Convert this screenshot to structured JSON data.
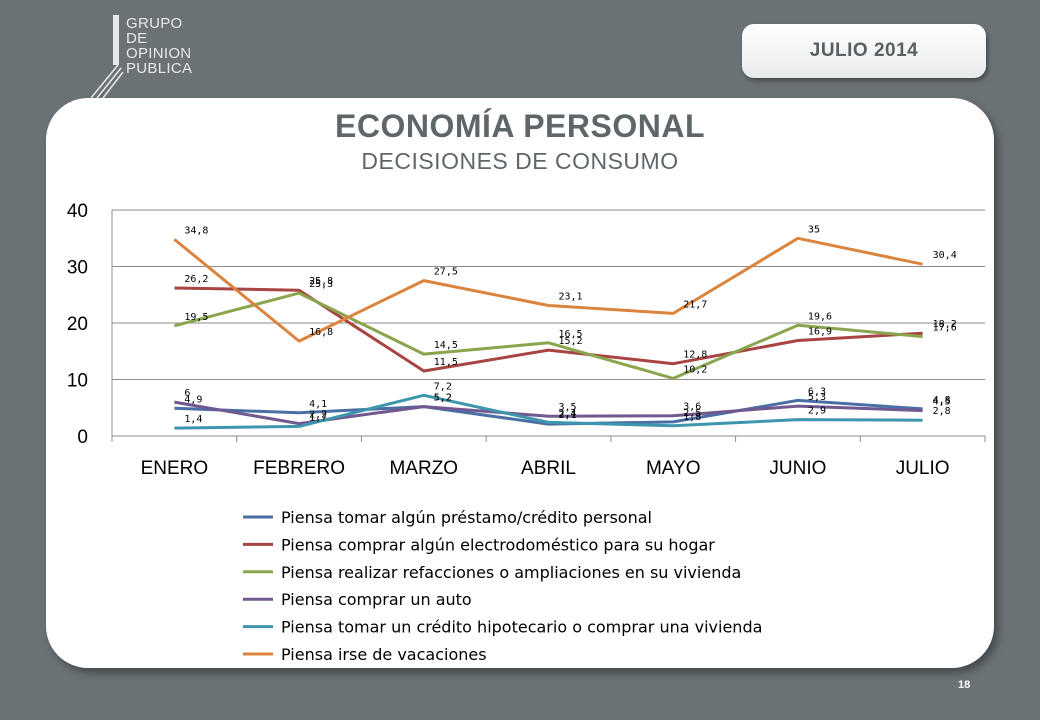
{
  "header": {
    "logo_lines": [
      "GRUPO",
      "DE",
      "OPINION",
      "PUBLICA"
    ],
    "date_label": "JULIO  2014"
  },
  "title": "ECONOMÍA PERSONAL",
  "subtitle": "DECISIONES DE CONSUMO",
  "page_number": "18",
  "chart_data": {
    "type": "line",
    "title": "ECONOMÍA PERSONAL",
    "subtitle": "DECISIONES DE CONSUMO",
    "xlabel": "",
    "ylabel": "",
    "ylim": [
      0,
      40
    ],
    "yticks": [
      0,
      10,
      20,
      30,
      40
    ],
    "grid": true,
    "legend_position": "bottom",
    "categories": [
      "ENERO",
      "FEBRERO",
      "MARZO",
      "ABRIL",
      "MAYO",
      "JUNIO",
      "JULIO"
    ],
    "series": [
      {
        "name": "Piensa tomar algún préstamo/crédito personal",
        "color": "#4a6fa5",
        "values": [
          4.9,
          4.1,
          5.2,
          2.1,
          2.5,
          6.3,
          4.8
        ],
        "labels": [
          "4,9",
          "4,1",
          "5,2",
          "2,1",
          "2,5",
          "6,3",
          "4,8"
        ]
      },
      {
        "name": "Piensa comprar algún electrodoméstico para su hogar",
        "color": "#a84441",
        "values": [
          26.2,
          25.8,
          11.5,
          15.2,
          12.8,
          16.9,
          18.2
        ],
        "labels": [
          "26,2",
          "25,8",
          "11,5",
          "15,2",
          "12,8",
          "16,9",
          "18,2"
        ]
      },
      {
        "name": "Piensa realizar refacciones o ampliaciones en su vivienda",
        "color": "#89a54e",
        "values": [
          19.5,
          25.3,
          14.5,
          16.5,
          10.2,
          19.6,
          17.6
        ],
        "labels": [
          "19,5",
          "25,3",
          "14,5",
          "16,5",
          "10,2",
          "19,6",
          "17,6"
        ]
      },
      {
        "name": "Piensa comprar un auto",
        "color": "#71588f",
        "values": [
          6,
          2.2,
          5.2,
          3.5,
          3.6,
          5.3,
          4.5
        ],
        "labels": [
          "6",
          "2,2",
          "5,2",
          "3,5",
          "3,6",
          "5,3",
          "4,5"
        ]
      },
      {
        "name": "Piensa tomar un crédito hipotecario o comprar una vivienda",
        "color": "#3d96ae",
        "values": [
          1.4,
          1.7,
          7.2,
          2.4,
          1.8,
          2.9,
          2.8
        ],
        "labels": [
          "1,4",
          "1,7",
          "7,2",
          "2,4",
          "1,8",
          "2,9",
          "2,8"
        ]
      },
      {
        "name": "Piensa irse de vacaciones",
        "color": "#db843d",
        "values": [
          34.8,
          16.8,
          27.5,
          23.1,
          21.7,
          35,
          30.4
        ],
        "labels": [
          "34,8",
          "16,8",
          "27,5",
          "23,1",
          "21,7",
          "35",
          "30,4"
        ]
      }
    ]
  }
}
